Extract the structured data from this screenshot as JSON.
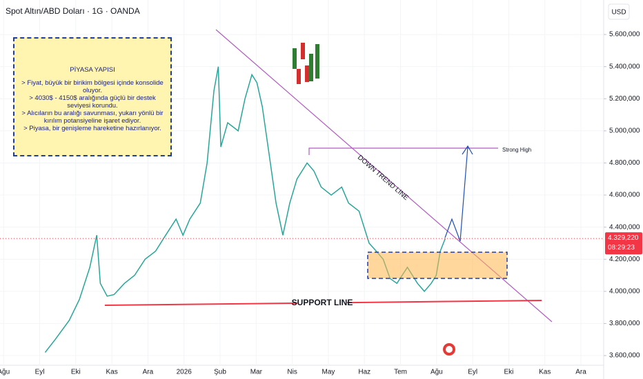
{
  "chart_data": {
    "type": "line",
    "title": "Spot Altın/ABD Doları · 1G · OANDA",
    "currency": "USD",
    "color": "#26a69a",
    "x": [
      1.15,
      1.43,
      1.82,
      2.1,
      2.39,
      2.58,
      2.68,
      2.87,
      3.06,
      3.35,
      3.63,
      3.92,
      4.21,
      4.49,
      4.78,
      4.97,
      5.16,
      5.45,
      5.64,
      5.83,
      5.95,
      6.02,
      6.21,
      6.5,
      6.69,
      6.88,
      7.02,
      7.17,
      7.36,
      7.55,
      7.74,
      7.93,
      8.13,
      8.41,
      8.6,
      8.8,
      9.08,
      9.37,
      9.56,
      9.85,
      10.13,
      10.33,
      10.52,
      10.71,
      10.9,
      11.19,
      11.47,
      11.66,
      11.85,
      11.99,
      12.1,
      12.24
    ],
    "values": [
      3620000,
      3700000,
      3820000,
      3950000,
      4150000,
      4350000,
      4050000,
      3970000,
      3980000,
      4050000,
      4100000,
      4200000,
      4250000,
      4350000,
      4450000,
      4350000,
      4450000,
      4550000,
      4800000,
      5250000,
      5400000,
      4900000,
      5050000,
      5000000,
      5200000,
      5350000,
      5300000,
      5150000,
      4850000,
      4550000,
      4350000,
      4550000,
      4700000,
      4800000,
      4750000,
      4650000,
      4600000,
      4650000,
      4550000,
      4500000,
      4300000,
      4250000,
      4200000,
      4080000,
      4050000,
      4150000,
      4050000,
      4000000,
      4050000,
      4100000,
      4250000,
      4330000
    ],
    "xlim": [
      -0.1,
      16.63
    ],
    "xticks": [
      {
        "value": 0,
        "label": "Ağu"
      },
      {
        "value": 1,
        "label": "Eyl"
      },
      {
        "value": 2,
        "label": "Eki"
      },
      {
        "value": 3,
        "label": "Kas"
      },
      {
        "value": 4,
        "label": "Ara"
      },
      {
        "value": 5,
        "label": "2026"
      },
      {
        "value": 6,
        "label": "Şub"
      },
      {
        "value": 7,
        "label": "Mar"
      },
      {
        "value": 8,
        "label": "Nis"
      },
      {
        "value": 9,
        "label": "May"
      },
      {
        "value": 10,
        "label": "Haz"
      },
      {
        "value": 11,
        "label": "Tem"
      },
      {
        "value": 12,
        "label": "Ağu"
      },
      {
        "value": 13,
        "label": "Eyl"
      },
      {
        "value": 14,
        "label": "Eki"
      },
      {
        "value": 15,
        "label": "Kas"
      },
      {
        "value": 16,
        "label": "Ara"
      }
    ],
    "ylim": [
      3540000,
      5815000
    ],
    "yticks": [
      {
        "value": 3600000,
        "label": "3.600,000"
      },
      {
        "value": 3800000,
        "label": "3.800,000"
      },
      {
        "value": 4000000,
        "label": "4.000,000"
      },
      {
        "value": 4200000,
        "label": "4.200,000"
      },
      {
        "value": 4400000,
        "label": "4.400,000"
      },
      {
        "value": 4600000,
        "label": "4.600,000"
      },
      {
        "value": 4800000,
        "label": "4.800,000"
      },
      {
        "value": 5000000,
        "label": "5.000,000"
      },
      {
        "value": 5200000,
        "label": "5.200,000"
      },
      {
        "value": 5400000,
        "label": "5.400,000"
      },
      {
        "value": 5600000,
        "label": "5.600,000"
      }
    ],
    "grid": true,
    "price_tag": {
      "value": 4329220,
      "label": "4.329,220"
    },
    "countdown": "08:29:23",
    "annotations": {
      "trend": "DOWN TREND LINE",
      "support": "SUPPORT LINE",
      "high": "Strong High"
    },
    "note": {
      "title": "PİYASA YAPISI",
      "lines": [
        "> Fiyat, büyük bir birikim bölgesi içinde konsolide oluyor.",
        "> 4030$ - 4150$ aralığında güçlü bir destek seviyesi korundu.",
        "> Alıcıların bu aralığı savunması, yukarı yönlü bir kırılım potansiyeline işaret ediyor.",
        "> Piyasa, bir genişleme hareketine hazırlanıyor."
      ]
    }
  }
}
